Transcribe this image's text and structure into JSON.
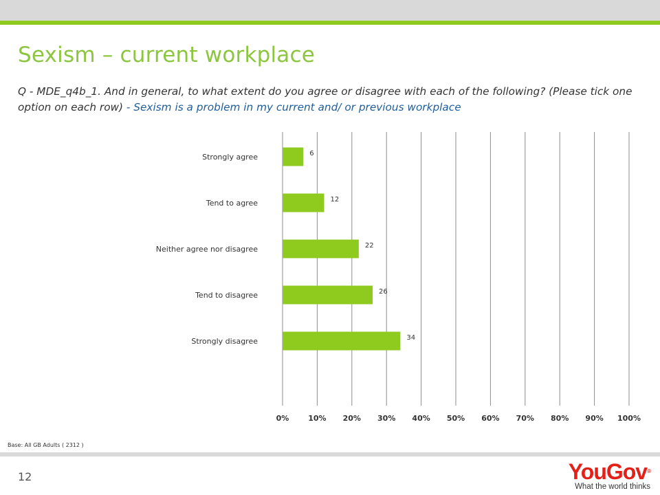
{
  "header": {
    "title": "Sexism – current workplace",
    "question": "Q - MDE_q4b_1. And in general, to what extent do you agree or disagree with each of the following? (Please tick one option on each row) ",
    "question_highlight": "- Sexism is a problem in my current and/ or previous workplace"
  },
  "chart_data": {
    "type": "bar",
    "orientation": "horizontal",
    "categories": [
      "Strongly agree",
      "Tend to agree",
      "Neither agree nor disagree",
      "Tend to disagree",
      "Strongly disagree"
    ],
    "values": [
      6,
      12,
      22,
      26,
      34
    ],
    "xlim": [
      0,
      100
    ],
    "xticks": [
      "0%",
      "10%",
      "20%",
      "30%",
      "40%",
      "50%",
      "60%",
      "70%",
      "80%",
      "90%",
      "100%"
    ],
    "grid": true,
    "bar_color": "#8ecb1e"
  },
  "footer": {
    "base_note": "Base: All GB Adults ( 2312 )",
    "page_number": "12",
    "logo_text": "YouGov",
    "logo_registered": "®",
    "logo_tagline": "What the world thinks"
  },
  "colors": {
    "accent_green": "#8cc63f",
    "highlight_blue": "#1f5e9c",
    "logo_red": "#e32119"
  }
}
